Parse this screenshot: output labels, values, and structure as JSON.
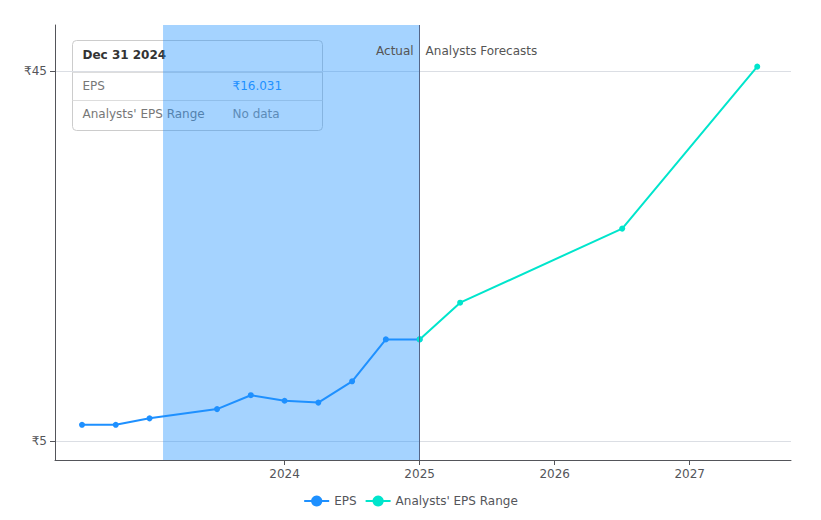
{
  "chart_data": {
    "type": "line",
    "series": [
      {
        "name": "EPS",
        "color": "#1e90ff",
        "marker": "circle",
        "x": [
          2022.5,
          2022.75,
          2023.0,
          2023.5,
          2023.75,
          2024.0,
          2024.25,
          2024.5,
          2024.75,
          2025.0
        ],
        "values": [
          6.8,
          6.8,
          7.5,
          8.5,
          10.0,
          9.4,
          9.2,
          11.5,
          16.031,
          16.031
        ]
      },
      {
        "name": "Analysts' EPS Range",
        "color": "#00e5cc",
        "marker": "circle",
        "x": [
          2025.0,
          2025.3,
          2026.5,
          2027.5
        ],
        "values": [
          16.031,
          20.0,
          28.0,
          45.5
        ]
      }
    ],
    "xlim": [
      2022.3,
      2027.75
    ],
    "xticks": [
      2024,
      2025,
      2026,
      2027
    ],
    "ylim": [
      3,
      50
    ],
    "yticks": [
      {
        "value": 5,
        "label": "₹5"
      },
      {
        "value": 45,
        "label": "₹45"
      }
    ],
    "grid": true,
    "legend": "bottom",
    "highlight_x": [
      2023.1,
      2025.0
    ],
    "divider_x": 2025.0,
    "annotations": [
      {
        "text": "Actual",
        "x": 2025.0,
        "y": 47.2,
        "align": "right"
      },
      {
        "text": "Analysts Forecasts",
        "x": 2025.0,
        "y": 47.2,
        "align": "left"
      }
    ],
    "tooltip": {
      "title": "Dec 31 2024",
      "rows": [
        {
          "label": "EPS",
          "value": "₹16.031"
        },
        {
          "label": "Analysts' EPS Range",
          "value": "No data"
        }
      ]
    }
  }
}
